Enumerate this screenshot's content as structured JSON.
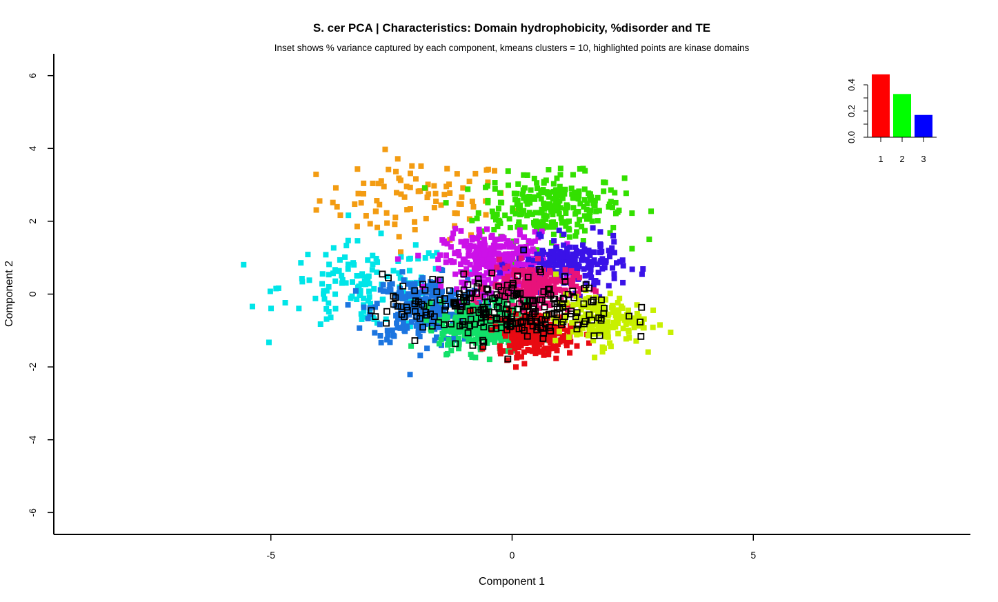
{
  "chart_data": {
    "type": "scatter",
    "title": "S. cer PCA | Characteristics: Domain hydrophobicity, %disorder and TE",
    "subtitle": "Inset shows % variance captured by each component, kmeans clusters = 10, highlighted points are kinase domains",
    "xlabel": "Component 1",
    "ylabel": "Component 2",
    "xlim": [
      -9.5,
      9.5
    ],
    "ylim": [
      -6.6,
      6.6
    ],
    "x_ticks": [
      -5,
      0,
      5
    ],
    "y_ticks": [
      -6,
      -4,
      -2,
      0,
      2,
      4,
      6
    ],
    "x_tick_labels": [
      "-5",
      "0",
      "5"
    ],
    "y_tick_labels": [
      "-6",
      "-4",
      "-2",
      "0",
      "2",
      "4",
      "6"
    ],
    "grid": false,
    "marker": "square",
    "clusters": [
      {
        "color": "#F39C12",
        "center": [
          -2.0,
          2.6
        ],
        "spread": [
          1.0,
          0.55
        ],
        "n": 90
      },
      {
        "color": "#33E000",
        "center": [
          0.8,
          2.4
        ],
        "spread": [
          0.75,
          0.45
        ],
        "n": 260
      },
      {
        "color": "#00E5E8",
        "center": [
          -3.0,
          0.2
        ],
        "spread": [
          0.9,
          0.6
        ],
        "n": 140
      },
      {
        "color": "#1C75E0",
        "center": [
          -1.8,
          -0.4
        ],
        "spread": [
          0.55,
          0.45
        ],
        "n": 300
      },
      {
        "color": "#CC11E8",
        "center": [
          -0.3,
          0.9
        ],
        "spread": [
          0.55,
          0.4
        ],
        "n": 320
      },
      {
        "color": "#3A12E8",
        "center": [
          1.2,
          0.8
        ],
        "spread": [
          0.55,
          0.35
        ],
        "n": 200
      },
      {
        "color": "#E8127A",
        "center": [
          0.4,
          0.2
        ],
        "spread": [
          0.45,
          0.3
        ],
        "n": 200
      },
      {
        "color": "#12E069",
        "center": [
          -0.6,
          -0.9
        ],
        "spread": [
          0.45,
          0.35
        ],
        "n": 280
      },
      {
        "color": "#E80A12",
        "center": [
          0.5,
          -1.1
        ],
        "spread": [
          0.4,
          0.3
        ],
        "n": 240
      },
      {
        "color": "#C8F000",
        "center": [
          1.8,
          -0.7
        ],
        "spread": [
          0.45,
          0.35
        ],
        "n": 180
      }
    ],
    "kinase_domains": {
      "center": [
        -0.2,
        -0.4
      ],
      "spread": [
        1.2,
        0.45
      ],
      "n": 260,
      "color": "#000000"
    },
    "inset": {
      "type": "bar",
      "description": "% variance captured by each component",
      "categories": [
        "1",
        "2",
        "3"
      ],
      "values": [
        0.48,
        0.33,
        0.17
      ],
      "colors": [
        "#FF0000",
        "#00FF00",
        "#0000FF"
      ],
      "ylim": [
        0,
        0.5
      ],
      "y_ticks": [
        0.0,
        0.2,
        0.4
      ],
      "y_tick_labels": [
        "0.0",
        "0.2",
        "0.4"
      ]
    }
  }
}
